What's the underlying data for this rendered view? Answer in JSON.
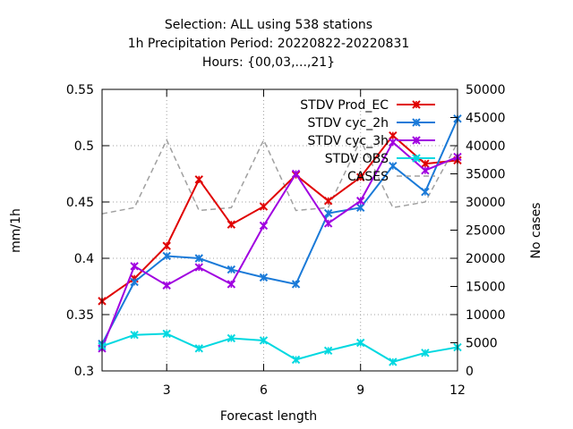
{
  "chart_data": {
    "type": "line",
    "title_lines": [
      "Selection: ALL using   538 stations",
      "1h Precipitation   Period: 20220822-20220831",
      "Hours: {00,03,...,21}"
    ],
    "xlabel": "Forecast length",
    "ylabel": "mm/1h",
    "y2label": "No cases",
    "xlim": [
      1,
      12
    ],
    "ylim": [
      0.3,
      0.55
    ],
    "y2lim": [
      0,
      50000
    ],
    "x_ticks": [
      3,
      6,
      9,
      12
    ],
    "y_ticks": [
      0.3,
      0.35,
      0.4,
      0.45,
      0.5,
      0.55
    ],
    "y2_ticks": [
      0,
      5000,
      10000,
      15000,
      20000,
      25000,
      30000,
      35000,
      40000,
      45000,
      50000
    ],
    "grid": true,
    "legend_position": "top-right",
    "x": [
      1,
      2,
      3,
      4,
      5,
      6,
      7,
      8,
      9,
      10,
      11,
      12
    ],
    "series": [
      {
        "name": "STDV Prod_EC",
        "color": "#e00000",
        "marker": "x",
        "axis": "left",
        "values": [
          0.362,
          0.382,
          0.411,
          0.47,
          0.43,
          0.446,
          0.474,
          0.451,
          0.472,
          0.509,
          0.484,
          0.487
        ]
      },
      {
        "name": "STDV cyc_2h",
        "color": "#1a7ad8",
        "marker": "x",
        "axis": "left",
        "values": [
          0.324,
          0.379,
          0.402,
          0.4,
          0.39,
          0.383,
          0.377,
          0.44,
          0.445,
          0.482,
          0.459,
          0.524
        ]
      },
      {
        "name": "STDV cyc_3h",
        "color": "#a000e0",
        "marker": "x",
        "axis": "left",
        "values": [
          0.32,
          0.393,
          0.376,
          0.392,
          0.377,
          0.429,
          0.475,
          0.431,
          0.451,
          0.503,
          0.478,
          0.49
        ]
      },
      {
        "name": "STDV OBS",
        "color": "#00d8e0",
        "marker": "x",
        "axis": "left",
        "values": [
          0.322,
          0.332,
          0.333,
          0.32,
          0.329,
          0.327,
          0.31,
          0.318,
          0.325,
          0.308,
          0.316,
          0.321
        ]
      },
      {
        "name": "CASES",
        "color": "#a0a0a0",
        "marker": "none",
        "dashed": true,
        "axis": "right",
        "values": [
          27900,
          29000,
          41000,
          28500,
          29000,
          41000,
          28500,
          29000,
          41000,
          29000,
          30000,
          40500
        ]
      }
    ]
  }
}
